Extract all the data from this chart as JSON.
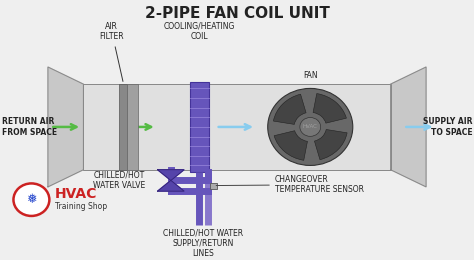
{
  "title": "2-PIPE FAN COIL UNIT",
  "bg_color": "#efefef",
  "duct_color": "#c8c8c8",
  "duct_inner_color": "#e0e0e0",
  "duct_outline": "#888888",
  "filter_color": "#a0a0a0",
  "filter_dark": "#888888",
  "coil_color": "#6655bb",
  "coil_line_color": "#9988dd",
  "pipe_color": "#6655bb",
  "pipe_color2": "#8877cc",
  "valve_color": "#5544aa",
  "fan_outer_color": "#686868",
  "fan_blade_color": "#444444",
  "fan_hub_color": "#777777",
  "sensor_color": "#999999",
  "green_arrow": "#55bb44",
  "blue_arrow": "#88ccee",
  "text_color": "#222222",
  "hvac_red": "#cc2222",
  "hvac_blue": "#2244cc",
  "label_return": "RETURN AIR\nFROM SPACE",
  "label_supply": "SUPPLY AIR\nTO SPACE",
  "label_filter": "AIR\nFILTER",
  "label_coil": "COOLING/HEATING\nCOIL",
  "label_fan": "FAN",
  "label_valve": "CHILLED/HOT\nWATER VALVE",
  "label_sensor": "CHANGEOVER\nTEMPERATURE SENSOR",
  "label_pipe": "CHILLED/HOT WATER\nSUPPLY/RETURN\nLINES",
  "label_hvac": "HVAC",
  "label_shop": "Training Shop",
  "fs": 5.5,
  "title_fs": 11
}
